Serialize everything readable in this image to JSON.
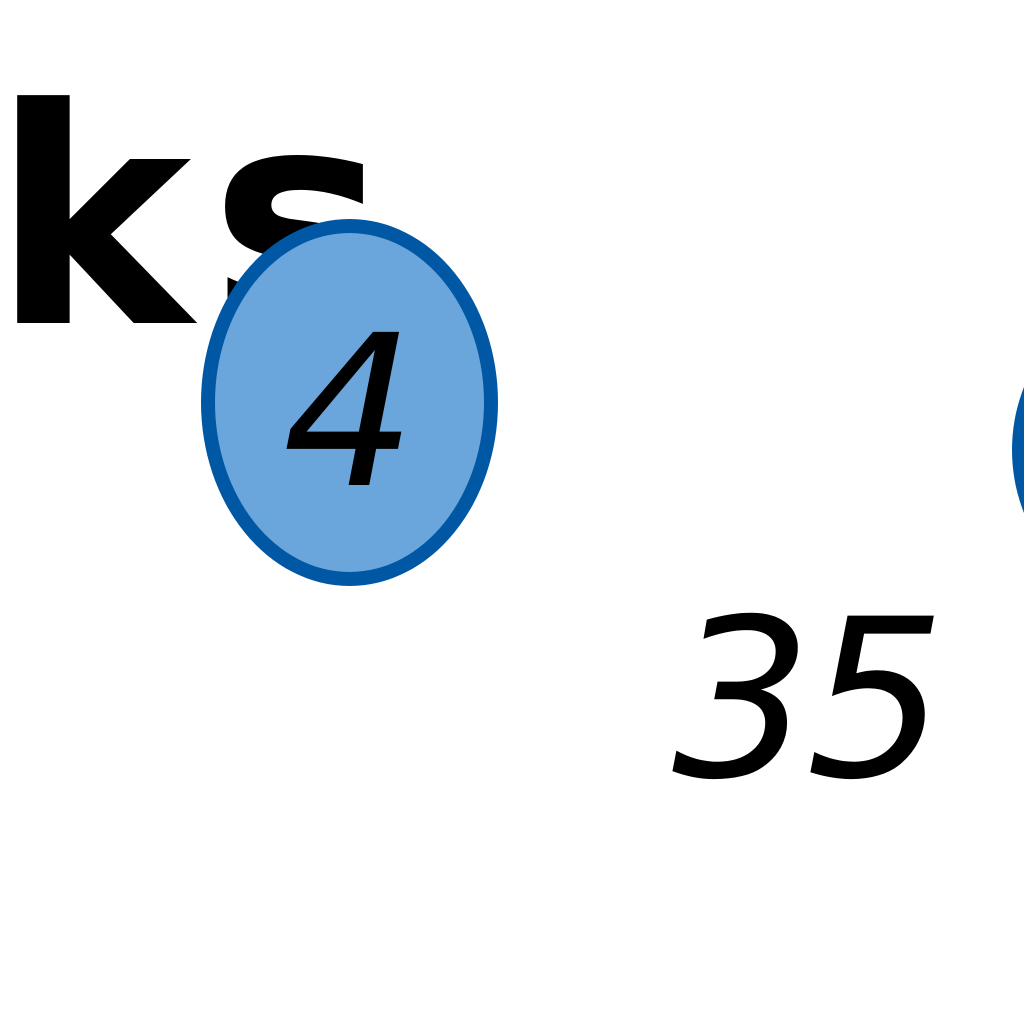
{
  "fragment_text": "ks",
  "nodes": [
    {
      "label": "4"
    }
  ],
  "edges": [
    {
      "label": "35"
    }
  ],
  "colors": {
    "node_fill": "#6aa5dc",
    "node_border": "#0057a4",
    "text": "#000000",
    "background": "#ffffff"
  }
}
